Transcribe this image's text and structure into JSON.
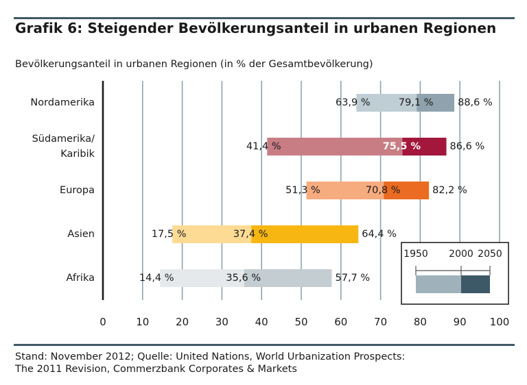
{
  "title": "Grafik 6: Steigender Bevölkerungsanteil in urbanen Regionen",
  "chart_data": {
    "type": "bar",
    "subtitle": "Bevölkerungsanteil in urbanen Regionen (in % der Gesamtbevölkerung)",
    "xlim": [
      0,
      100
    ],
    "xticks": [
      "0",
      "10",
      "20",
      "30",
      "40",
      "50",
      "60",
      "70",
      "80",
      "90",
      "100"
    ],
    "grid": "vertical",
    "legend": {
      "placement": "bottom-right",
      "labels": [
        "1950",
        "2000",
        "2050"
      ],
      "colors": [
        "#9fb2bc",
        "#3d5866"
      ]
    },
    "categories": [
      {
        "label_lines": [
          "Nordamerika"
        ],
        "values": {
          "1950": 63.9,
          "2000": 79.1,
          "2050": 88.6
        },
        "labels": [
          "63,9 %",
          "79,1 %",
          "88,6 %"
        ],
        "colors": [
          "#bfcdd4",
          "#8fa3ae"
        ]
      },
      {
        "label_lines": [
          "Südamerika/",
          "Karibik"
        ],
        "values": {
          "1950": 41.4,
          "2000": 75.5,
          "2050": 86.6
        },
        "labels": [
          "41,4 %",
          "75,5 %",
          "86,6 %"
        ],
        "colors": [
          "#c87d85",
          "#a3173c"
        ]
      },
      {
        "label_lines": [
          "Europa"
        ],
        "values": {
          "1950": 51.3,
          "2000": 70.8,
          "2050": 82.2
        },
        "labels": [
          "51,3 %",
          "70,8 %",
          "82,2 %"
        ],
        "colors": [
          "#f7ac80",
          "#ea6b21"
        ]
      },
      {
        "label_lines": [
          "Asien"
        ],
        "values": {
          "1950": 17.5,
          "2000": 37.4,
          "2050": 64.4
        },
        "labels": [
          "17,5 %",
          "37,4 %",
          "64,4 %"
        ],
        "colors": [
          "#fddb95",
          "#f7b612"
        ]
      },
      {
        "label_lines": [
          "Afrika"
        ],
        "values": {
          "1950": 14.4,
          "2000": 35.6,
          "2050": 57.7
        },
        "labels": [
          "14,4 %",
          "35,6 %",
          "57,7 %"
        ],
        "colors": [
          "#e6e9eb",
          "#c4cdd2"
        ]
      }
    ]
  },
  "footer": {
    "line1": "Stand: November 2012; Quelle: United Nations, World Urbanization Prospects:",
    "line2": "The 2011 Revision, Commerzbank Corporates & Markets"
  }
}
